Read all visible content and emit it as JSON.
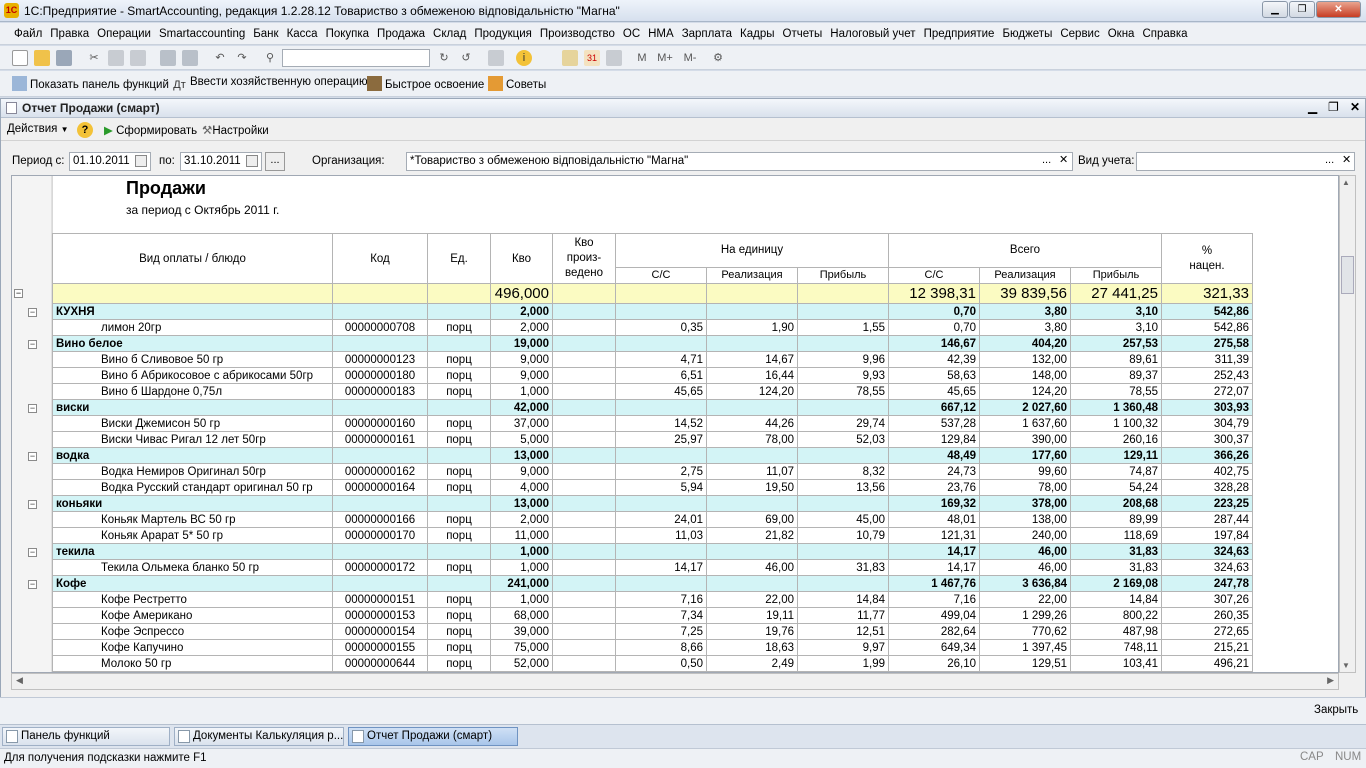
{
  "window": {
    "title": "1С:Предприятие - SmartAccounting, редакция 1.2.28.12 Товариство з обмеженою відповідальністю \"Магна\"",
    "icon_text": "1С",
    "min_glyph": "▁",
    "max_glyph": "❐",
    "close_glyph": "✕"
  },
  "menu": [
    "Файл",
    "Правка",
    "Операции",
    "Smartaccounting",
    "Банк",
    "Касса",
    "Покупка",
    "Продажа",
    "Склад",
    "Продукция",
    "Производство",
    "ОС",
    "НМА",
    "Зарплата",
    "Кадры",
    "Отчеты",
    "Налоговый учет",
    "Предприятие",
    "Бюджеты",
    "Сервис",
    "Окна",
    "Справка"
  ],
  "toolbar2": {
    "functions_panel": "Показать панель функций",
    "enter_operation": "Ввести хозяйственную операцию",
    "quick_learn": "Быстрое освоение",
    "tips": "Советы"
  },
  "toolbar1_text": {
    "m": "M",
    "m_plus": "M+",
    "m_minus": "M-"
  },
  "doc": {
    "title": "Отчет  Продажи (смарт)",
    "actions": "Действия",
    "generate": "Сформировать",
    "settings": "Настройки",
    "help_glyph": "?"
  },
  "params": {
    "period_from_label": "Период с:",
    "period_from": "01.10.2011",
    "period_to_label": "по:",
    "period_to": "31.10.2011",
    "org_label": "Организация:",
    "org": "*Товариство з обмеженою відповідальністю \"Магна\"",
    "account_type_label": "Вид учета:",
    "account_type": "",
    "ellipsis": "...",
    "clear": "✕"
  },
  "report": {
    "title": "Продажи",
    "subtitle": "за период с Октябрь 2011 г.",
    "headers": {
      "name": "Вид оплаты / блюдо",
      "code": "Код",
      "unit": "Ед.",
      "qty": "Кво",
      "qty_prod_1": "Кво",
      "qty_prod_2": "произ-",
      "qty_prod_3": "ведено",
      "per_unit": "На единицу",
      "total": "Всего",
      "cost": "С/С",
      "sale": "Реализация",
      "profit": "Прибыль",
      "markup_1": "%",
      "markup_2": "нацен."
    },
    "grand_total": {
      "qty": "496,000",
      "cost": "12 398,31",
      "sale": "39 839,56",
      "profit": "27 441,25",
      "markup": "321,33"
    },
    "rows": [
      {
        "kind": "group",
        "name": "КУХНЯ",
        "qty": "2,000",
        "tcost": "0,70",
        "tsale": "3,80",
        "tprofit": "3,10",
        "markup": "542,86"
      },
      {
        "kind": "item",
        "name": "лимон 20гр",
        "code": "00000000708",
        "unit": "порц",
        "qty": "2,000",
        "ucost": "0,35",
        "usale": "1,90",
        "uprofit": "1,55",
        "tcost": "0,70",
        "tsale": "3,80",
        "tprofit": "3,10",
        "markup": "542,86"
      },
      {
        "kind": "group",
        "name": "Вино белое",
        "qty": "19,000",
        "tcost": "146,67",
        "tsale": "404,20",
        "tprofit": "257,53",
        "markup": "275,58"
      },
      {
        "kind": "item",
        "name": "Вино б Сливовое 50 гр",
        "code": "00000000123",
        "unit": "порц",
        "qty": "9,000",
        "ucost": "4,71",
        "usale": "14,67",
        "uprofit": "9,96",
        "tcost": "42,39",
        "tsale": "132,00",
        "tprofit": "89,61",
        "markup": "311,39"
      },
      {
        "kind": "item",
        "name": "Вино б Абрикосовое с абрикосами 50гр",
        "code": "00000000180",
        "unit": "порц",
        "qty": "9,000",
        "ucost": "6,51",
        "usale": "16,44",
        "uprofit": "9,93",
        "tcost": "58,63",
        "tsale": "148,00",
        "tprofit": "89,37",
        "markup": "252,43"
      },
      {
        "kind": "item",
        "name": "Вино б Шардоне 0,75л",
        "code": "00000000183",
        "unit": "порц",
        "qty": "1,000",
        "ucost": "45,65",
        "usale": "124,20",
        "uprofit": "78,55",
        "tcost": "45,65",
        "tsale": "124,20",
        "tprofit": "78,55",
        "markup": "272,07"
      },
      {
        "kind": "group",
        "name": "виски",
        "qty": "42,000",
        "tcost": "667,12",
        "tsale": "2 027,60",
        "tprofit": "1 360,48",
        "markup": "303,93"
      },
      {
        "kind": "item",
        "name": "Виски Джемисон 50 гр",
        "code": "00000000160",
        "unit": "порц",
        "qty": "37,000",
        "ucost": "14,52",
        "usale": "44,26",
        "uprofit": "29,74",
        "tcost": "537,28",
        "tsale": "1 637,60",
        "tprofit": "1 100,32",
        "markup": "304,79"
      },
      {
        "kind": "item",
        "name": "Виски Чивас Ригал 12 лет 50гр",
        "code": "00000000161",
        "unit": "порц",
        "qty": "5,000",
        "ucost": "25,97",
        "usale": "78,00",
        "uprofit": "52,03",
        "tcost": "129,84",
        "tsale": "390,00",
        "tprofit": "260,16",
        "markup": "300,37"
      },
      {
        "kind": "group",
        "name": "водка",
        "qty": "13,000",
        "tcost": "48,49",
        "tsale": "177,60",
        "tprofit": "129,11",
        "markup": "366,26"
      },
      {
        "kind": "item",
        "name": "Водка Немиров Оригинал 50гр",
        "code": "00000000162",
        "unit": "порц",
        "qty": "9,000",
        "ucost": "2,75",
        "usale": "11,07",
        "uprofit": "8,32",
        "tcost": "24,73",
        "tsale": "99,60",
        "tprofit": "74,87",
        "markup": "402,75"
      },
      {
        "kind": "item",
        "name": "Водка Русский стандарт оригинал 50 гр",
        "code": "00000000164",
        "unit": "порц",
        "qty": "4,000",
        "ucost": "5,94",
        "usale": "19,50",
        "uprofit": "13,56",
        "tcost": "23,76",
        "tsale": "78,00",
        "tprofit": "54,24",
        "markup": "328,28"
      },
      {
        "kind": "group",
        "name": "коньяки",
        "qty": "13,000",
        "tcost": "169,32",
        "tsale": "378,00",
        "tprofit": "208,68",
        "markup": "223,25"
      },
      {
        "kind": "item",
        "name": "Коньяк Мартель ВС 50 гр",
        "code": "00000000166",
        "unit": "порц",
        "qty": "2,000",
        "ucost": "24,01",
        "usale": "69,00",
        "uprofit": "45,00",
        "tcost": "48,01",
        "tsale": "138,00",
        "tprofit": "89,99",
        "markup": "287,44"
      },
      {
        "kind": "item",
        "name": "Коньяк Арарат 5* 50 гр",
        "code": "00000000170",
        "unit": "порц",
        "qty": "11,000",
        "ucost": "11,03",
        "usale": "21,82",
        "uprofit": "10,79",
        "tcost": "121,31",
        "tsale": "240,00",
        "tprofit": "118,69",
        "markup": "197,84"
      },
      {
        "kind": "group",
        "name": "текила",
        "qty": "1,000",
        "tcost": "14,17",
        "tsale": "46,00",
        "tprofit": "31,83",
        "markup": "324,63"
      },
      {
        "kind": "item",
        "name": "Текила Ольмека бланко 50 гр",
        "code": "00000000172",
        "unit": "порц",
        "qty": "1,000",
        "ucost": "14,17",
        "usale": "46,00",
        "uprofit": "31,83",
        "tcost": "14,17",
        "tsale": "46,00",
        "tprofit": "31,83",
        "markup": "324,63"
      },
      {
        "kind": "group",
        "name": "Кофе",
        "qty": "241,000",
        "tcost": "1 467,76",
        "tsale": "3 636,84",
        "tprofit": "2 169,08",
        "markup": "247,78"
      },
      {
        "kind": "item",
        "name": "Кофе Рестретто",
        "code": "00000000151",
        "unit": "порц",
        "qty": "1,000",
        "ucost": "7,16",
        "usale": "22,00",
        "uprofit": "14,84",
        "tcost": "7,16",
        "tsale": "22,00",
        "tprofit": "14,84",
        "markup": "307,26"
      },
      {
        "kind": "item",
        "name": "Кофе Американо",
        "code": "00000000153",
        "unit": "порц",
        "qty": "68,000",
        "ucost": "7,34",
        "usale": "19,11",
        "uprofit": "11,77",
        "tcost": "499,04",
        "tsale": "1 299,26",
        "tprofit": "800,22",
        "markup": "260,35"
      },
      {
        "kind": "item",
        "name": "Кофе Эспрессо",
        "code": "00000000154",
        "unit": "порц",
        "qty": "39,000",
        "ucost": "7,25",
        "usale": "19,76",
        "uprofit": "12,51",
        "tcost": "282,64",
        "tsale": "770,62",
        "tprofit": "487,98",
        "markup": "272,65"
      },
      {
        "kind": "item",
        "name": "Кофе Капучино",
        "code": "00000000155",
        "unit": "порц",
        "qty": "75,000",
        "ucost": "8,66",
        "usale": "18,63",
        "uprofit": "9,97",
        "tcost": "649,34",
        "tsale": "1 397,45",
        "tprofit": "748,11",
        "markup": "215,21"
      },
      {
        "kind": "item",
        "name": "Молоко 50 гр",
        "code": "00000000644",
        "unit": "порц",
        "qty": "52,000",
        "ucost": "0,50",
        "usale": "2,49",
        "uprofit": "1,99",
        "tcost": "26,10",
        "tsale": "129,51",
        "tprofit": "103,41",
        "markup": "496,21"
      }
    ]
  },
  "close_button": "Закрыть",
  "taskbar": [
    "Панель функций",
    "Документы Калькуляция р...",
    "Отчет  Продажи (смарт)"
  ],
  "status": {
    "hint": "Для получения подсказки нажмите F1",
    "cap": "CAP",
    "num": "NUM"
  },
  "colors": {
    "group_row": "#d3f4f6",
    "total_row": "#fbfbc2"
  }
}
